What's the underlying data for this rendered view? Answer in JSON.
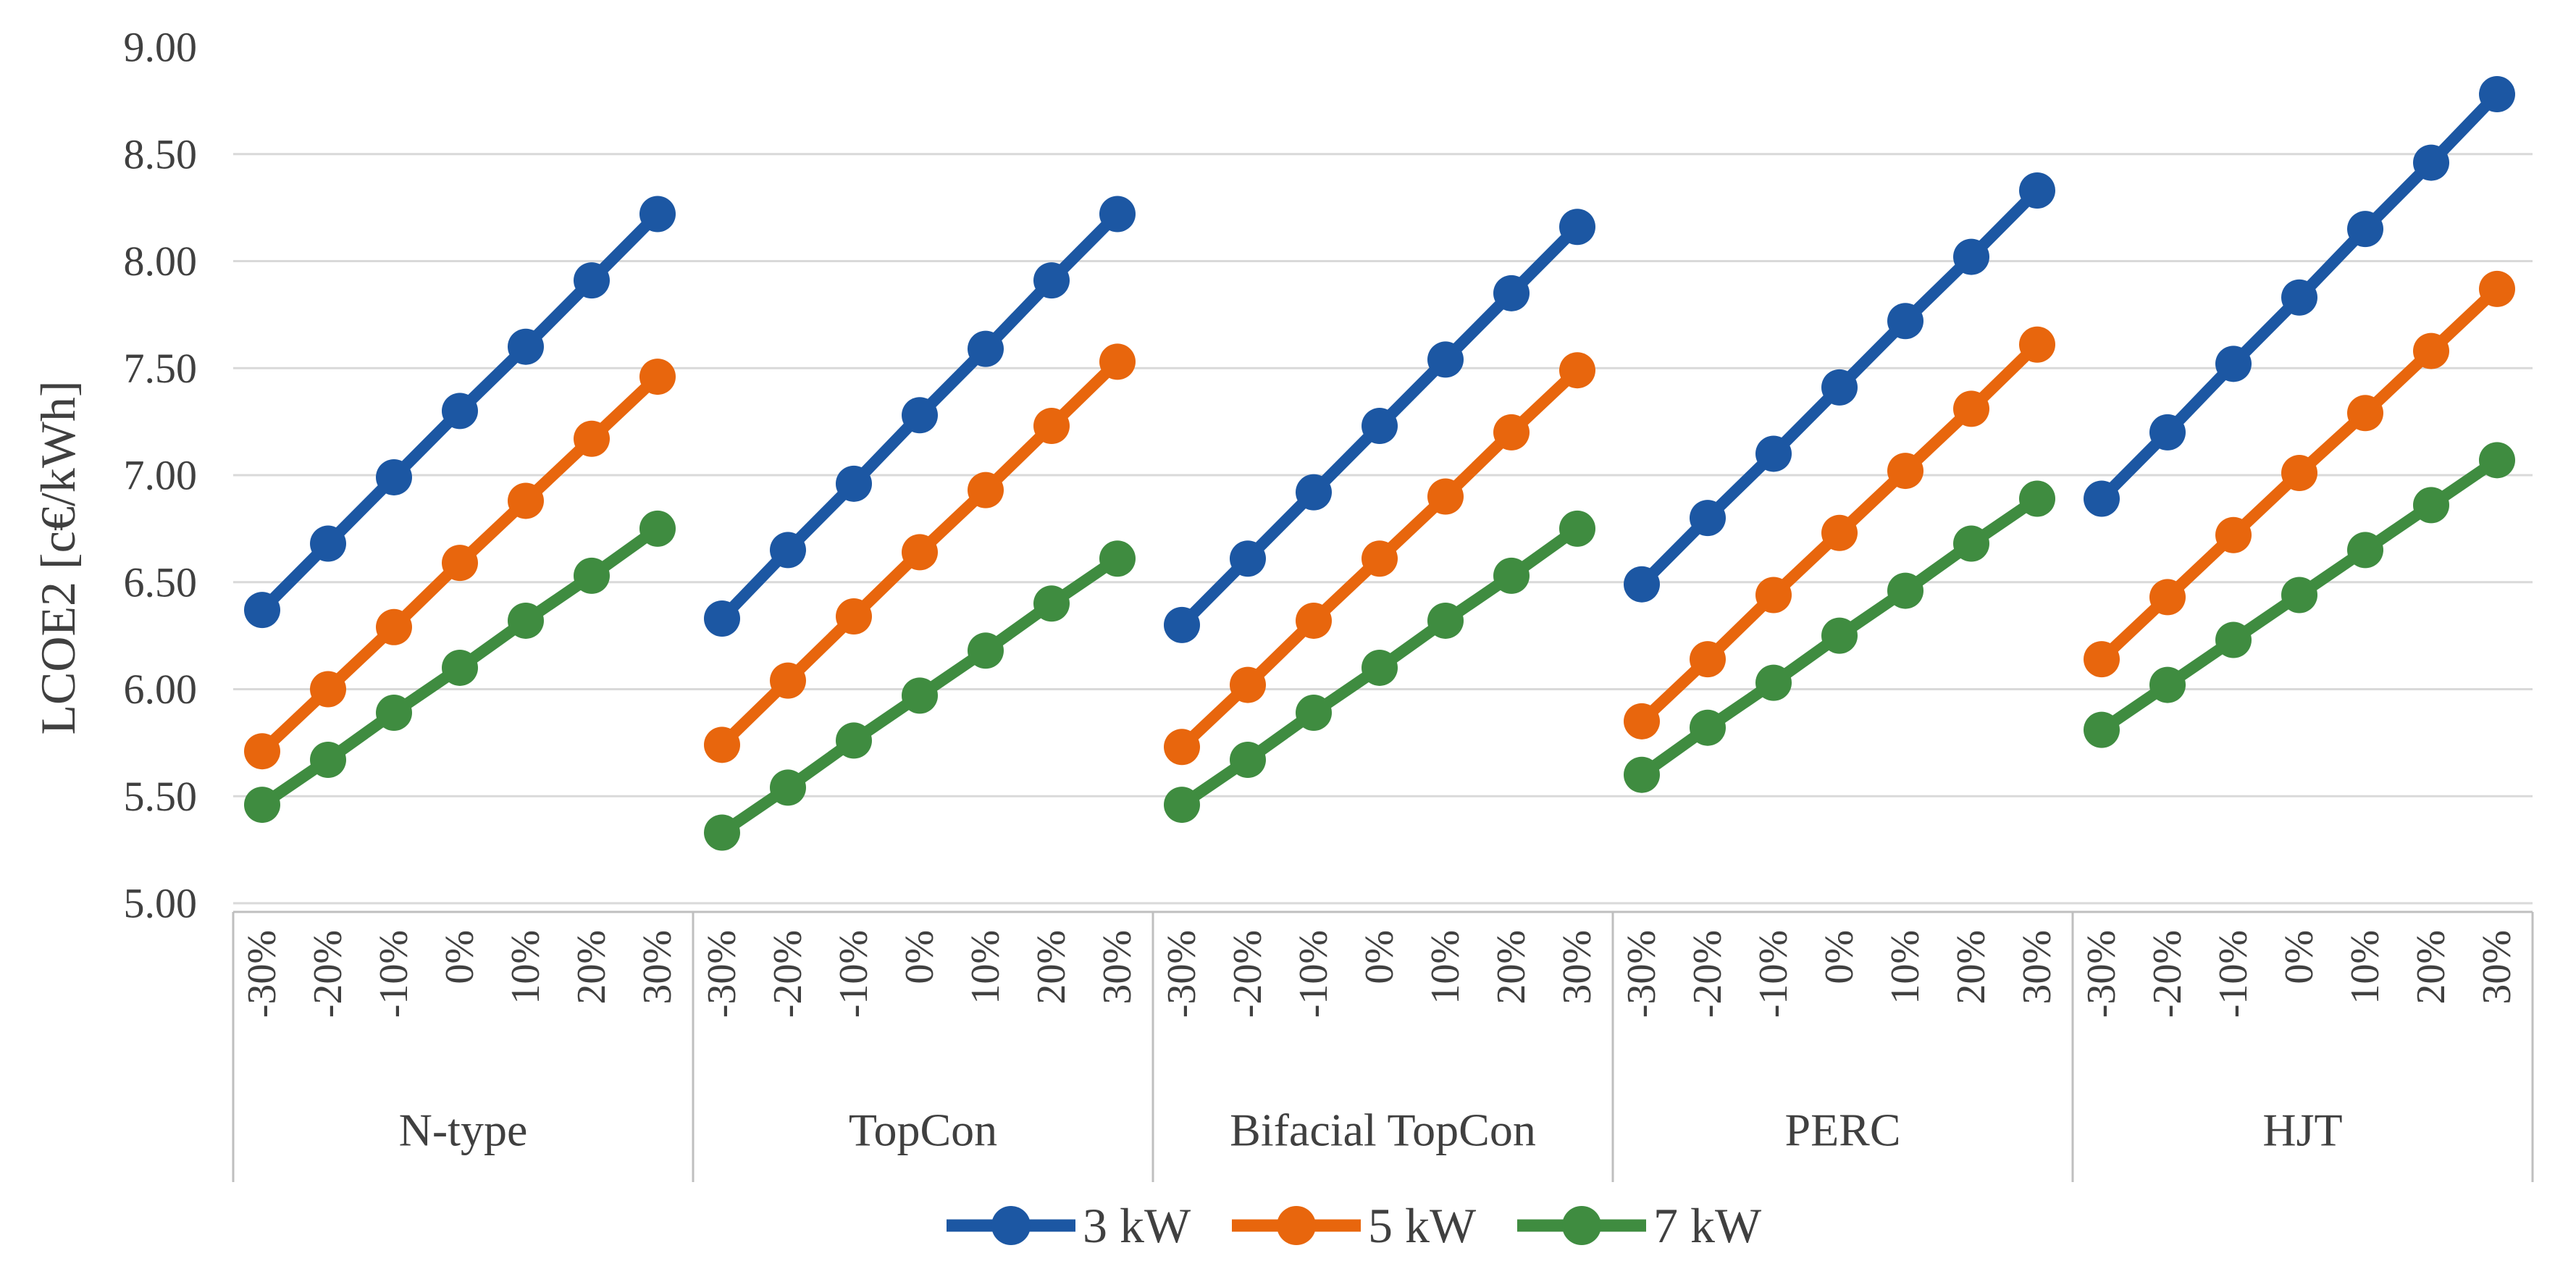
{
  "chart_data": {
    "type": "line",
    "title": "",
    "ylabel": "LCOE2 [c€/kWh]",
    "xlabel": "",
    "ylim": [
      5.0,
      9.0
    ],
    "y_tick_step": 0.5,
    "y_tick_labels": [
      "5.00",
      "5.50",
      "6.00",
      "6.50",
      "7.00",
      "7.50",
      "8.00",
      "8.50",
      "9.00"
    ],
    "grid": "horizontal",
    "legend_position": "bottom-center",
    "x_categories": [
      "-30%",
      "-20%",
      "-10%",
      "0%",
      "10%",
      "20%",
      "30%"
    ],
    "panel_groups": [
      "N-type",
      "TopCon",
      "Bifacial TopCon",
      "PERC",
      "HJT"
    ],
    "series": [
      {
        "name": "3 kW",
        "color": "#1C57A3",
        "values_by_panel": [
          [
            6.37,
            6.68,
            6.99,
            7.3,
            7.6,
            7.91,
            8.22
          ],
          [
            6.33,
            6.65,
            6.96,
            7.28,
            7.59,
            7.91,
            8.22
          ],
          [
            6.3,
            6.61,
            6.92,
            7.23,
            7.54,
            7.85,
            8.16
          ],
          [
            6.49,
            6.8,
            7.1,
            7.41,
            7.72,
            8.02,
            8.33
          ],
          [
            6.89,
            7.2,
            7.52,
            7.83,
            8.15,
            8.46,
            8.78
          ]
        ]
      },
      {
        "name": "5 kW",
        "color": "#E8660D",
        "values_by_panel": [
          [
            5.71,
            6.0,
            6.29,
            6.59,
            6.88,
            7.17,
            7.46
          ],
          [
            5.74,
            6.04,
            6.34,
            6.64,
            6.93,
            7.23,
            7.53
          ],
          [
            5.73,
            6.02,
            6.32,
            6.61,
            6.9,
            7.2,
            7.49
          ],
          [
            5.85,
            6.14,
            6.44,
            6.73,
            7.02,
            7.31,
            7.61
          ],
          [
            6.14,
            6.43,
            6.72,
            7.01,
            7.29,
            7.58,
            7.87
          ]
        ]
      },
      {
        "name": "7 kW",
        "color": "#3F8C40",
        "values_by_panel": [
          [
            5.46,
            5.67,
            5.89,
            6.1,
            6.32,
            6.53,
            6.75
          ],
          [
            5.33,
            5.54,
            5.76,
            5.97,
            6.18,
            6.4,
            6.61
          ],
          [
            5.46,
            5.67,
            5.89,
            6.1,
            6.32,
            6.53,
            6.75
          ],
          [
            5.6,
            5.82,
            6.03,
            6.25,
            6.46,
            6.68,
            6.89
          ],
          [
            5.81,
            6.02,
            6.23,
            6.44,
            6.65,
            6.86,
            7.07
          ]
        ]
      }
    ],
    "colors": {
      "text": "#404040",
      "gridline": "#D9D9D9",
      "axis_line": "#BFBFBF",
      "background": "#FFFFFF"
    }
  }
}
